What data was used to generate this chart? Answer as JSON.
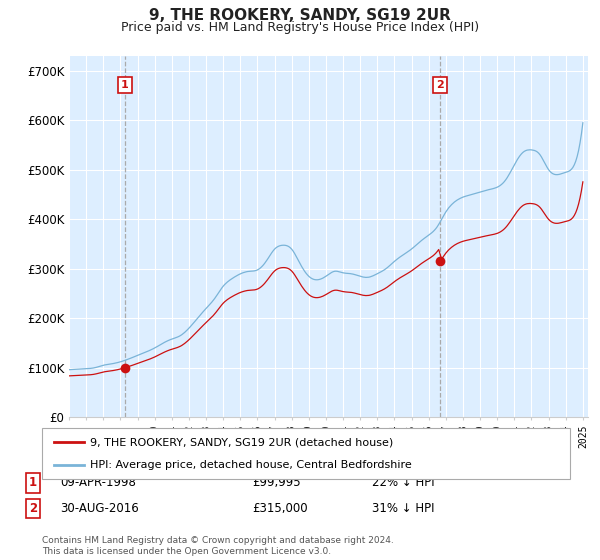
{
  "title": "9, THE ROOKERY, SANDY, SG19 2UR",
  "subtitle": "Price paid vs. HM Land Registry's House Price Index (HPI)",
  "ylim": [
    0,
    730000
  ],
  "yticks": [
    0,
    100000,
    200000,
    300000,
    400000,
    500000,
    600000,
    700000
  ],
  "ytick_labels": [
    "£0",
    "£100K",
    "£200K",
    "£300K",
    "£400K",
    "£500K",
    "£600K",
    "£700K"
  ],
  "hpi_color": "#7ab4d8",
  "price_color": "#cc1111",
  "vline_color": "#999999",
  "sale1_year": 1998.27,
  "sale1_price": 99995,
  "sale2_year": 2016.66,
  "sale2_price": 315000,
  "legend_line1": "9, THE ROOKERY, SANDY, SG19 2UR (detached house)",
  "legend_line2": "HPI: Average price, detached house, Central Bedfordshire",
  "table_row1": [
    "1",
    "09-APR-1998",
    "£99,995",
    "22% ↓ HPI"
  ],
  "table_row2": [
    "2",
    "30-AUG-2016",
    "£315,000",
    "31% ↓ HPI"
  ],
  "footer": "Contains HM Land Registry data © Crown copyright and database right 2024.\nThis data is licensed under the Open Government Licence v3.0.",
  "background_color": "#ffffff",
  "plot_bg_color": "#ddeeff",
  "grid_color": "#ffffff"
}
